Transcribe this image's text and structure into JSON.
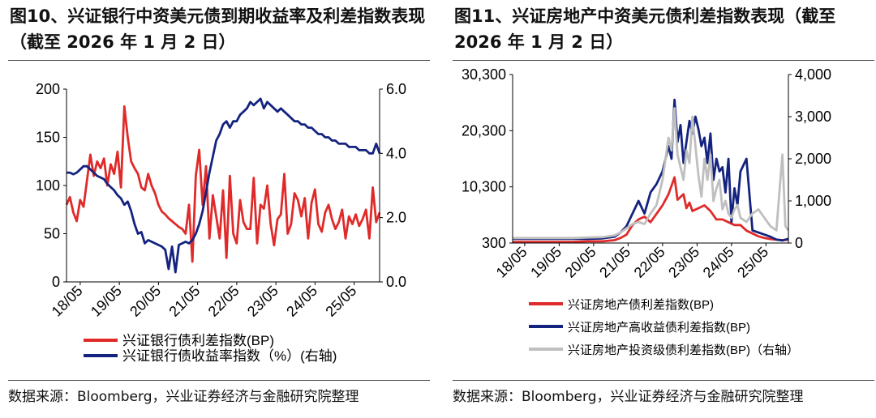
{
  "colors": {
    "red": "#e02a2a",
    "navy": "#14237f",
    "gray": "#bfbfbf",
    "axis": "#000000"
  },
  "left": {
    "title": "图10、兴证银行中资美元债到期收益率及利差指数表现（截至 2026 年 1 月 2 日）",
    "source": "数据来源：Bloomberg，兴业证券经济与金融研究院整理",
    "chart_data": {
      "type": "line",
      "x_ticks": [
        "18/05",
        "19/05",
        "20/05",
        "21/05",
        "22/05",
        "23/05",
        "24/05",
        "25/05"
      ],
      "x_range": [
        0,
        92
      ],
      "left_axis": {
        "ylim": [
          0,
          200
        ],
        "ticks": [
          "0",
          "50",
          "100",
          "150",
          "200"
        ],
        "tick_values": [
          0,
          50,
          100,
          150,
          200
        ]
      },
      "right_axis": {
        "ylim": [
          0,
          6
        ],
        "ticks": [
          "0.0",
          "2.0",
          "4.0",
          "6.0"
        ],
        "tick_values": [
          0,
          2,
          4,
          6
        ]
      },
      "series": [
        {
          "name": "兴证银行债利差指数(BP)",
          "axis": "left",
          "color": "red",
          "x": [
            0,
            1,
            2,
            3,
            4,
            5,
            6,
            7,
            8,
            9,
            10,
            11,
            12,
            13,
            14,
            15,
            16,
            17,
            18,
            19,
            20,
            21,
            22,
            23,
            24,
            25,
            26,
            27,
            28,
            29,
            30,
            31,
            32,
            33,
            34,
            35,
            36,
            37,
            38,
            39,
            40,
            41,
            42,
            43,
            44,
            45,
            46,
            47,
            48,
            49,
            50,
            51,
            52,
            53,
            54,
            55,
            56,
            57,
            58,
            59,
            60,
            61,
            62,
            63,
            64,
            65,
            66,
            67,
            68,
            69,
            70,
            71,
            72,
            73,
            74,
            75,
            76,
            77,
            78,
            79,
            80,
            81,
            82,
            83,
            84,
            85,
            86,
            87,
            88,
            89,
            90,
            91,
            92
          ],
          "values": [
            80,
            88,
            72,
            63,
            85,
            78,
            105,
            132,
            110,
            125,
            118,
            128,
            100,
            122,
            112,
            135,
            98,
            182,
            150,
            125,
            118,
            112,
            98,
            95,
            112,
            100,
            92,
            80,
            73,
            70,
            66,
            63,
            60,
            57,
            55,
            50,
            80,
            21,
            110,
            137,
            80,
            120,
            45,
            90,
            68,
            45,
            95,
            25,
            110,
            50,
            40,
            85,
            62,
            55,
            55,
            108,
            40,
            80,
            76,
            100,
            60,
            38,
            65,
            70,
            112,
            50,
            60,
            92,
            85,
            68,
            87,
            45,
            82,
            96,
            60,
            52,
            72,
            80,
            65,
            55,
            62,
            75,
            45,
            68,
            60,
            70,
            58,
            65,
            75,
            45,
            98,
            62,
            72
          ]
        },
        {
          "name": "兴证银行债收益率指数（%）(右轴)",
          "axis": "right",
          "color": "navy",
          "x": [
            0,
            1,
            2,
            3,
            4,
            5,
            6,
            7,
            8,
            9,
            10,
            11,
            12,
            13,
            14,
            15,
            16,
            17,
            18,
            19,
            20,
            21,
            22,
            23,
            24,
            25,
            26,
            27,
            28,
            29,
            30,
            31,
            32,
            33,
            34,
            35,
            36,
            37,
            38,
            39,
            40,
            41,
            42,
            43,
            44,
            45,
            46,
            47,
            48,
            49,
            50,
            51,
            52,
            53,
            54,
            55,
            56,
            57,
            58,
            59,
            60,
            61,
            62,
            63,
            64,
            65,
            66,
            67,
            68,
            69,
            70,
            71,
            72,
            73,
            74,
            75,
            76,
            77,
            78,
            79,
            80,
            81,
            82,
            83,
            84,
            85,
            86,
            87,
            88,
            89,
            90,
            91,
            92
          ],
          "values": [
            3.4,
            3.4,
            3.35,
            3.4,
            3.5,
            3.6,
            3.6,
            3.5,
            3.4,
            3.3,
            3.25,
            3.2,
            3.05,
            2.95,
            2.85,
            2.7,
            2.6,
            2.4,
            2.5,
            2.2,
            1.8,
            1.5,
            1.55,
            1.2,
            1.3,
            1.25,
            1.2,
            1.15,
            1.1,
            1.0,
            0.4,
            1.1,
            0.3,
            1.15,
            1.2,
            1.25,
            1.2,
            1.3,
            1.5,
            1.8,
            2.2,
            2.8,
            3.4,
            3.9,
            4.4,
            4.6,
            4.9,
            5.0,
            4.8,
            5.0,
            5.0,
            5.2,
            5.3,
            5.4,
            5.6,
            5.5,
            5.6,
            5.7,
            5.4,
            5.6,
            5.5,
            5.4,
            5.3,
            5.4,
            5.3,
            5.2,
            5.1,
            5.0,
            5.0,
            4.9,
            4.9,
            4.8,
            4.8,
            4.7,
            4.6,
            4.6,
            4.5,
            4.5,
            4.4,
            4.4,
            4.3,
            4.3,
            4.3,
            4.2,
            4.2,
            4.2,
            4.1,
            4.1,
            4.1,
            4.0,
            4.0,
            4.3,
            4.0
          ]
        }
      ]
    }
  },
  "right": {
    "title": "图11、兴证房地产中资美元债利差指数表现（截至 2026 年 1 月 2 日）",
    "source": "数据来源：Bloomberg，兴业证券经济与金融研究院整理",
    "chart_data": {
      "type": "line",
      "x_ticks": [
        "18/05",
        "19/05",
        "20/05",
        "21/05",
        "22/05",
        "23/05",
        "24/05",
        "25/05"
      ],
      "x_range": [
        0,
        92
      ],
      "left_axis": {
        "ylim": [
          300,
          30300
        ],
        "ticks": [
          "300",
          "10,300",
          "20,300",
          "30,300"
        ],
        "tick_values": [
          300,
          10300,
          20300,
          30300
        ]
      },
      "right_axis": {
        "ylim": [
          0,
          4000
        ],
        "ticks": [
          "0",
          "1,000",
          "2,000",
          "3,000",
          "4,000"
        ],
        "tick_values": [
          0,
          1000,
          2000,
          3000,
          4000
        ]
      },
      "series": [
        {
          "name": "兴证房地产债利差指数(BP)",
          "axis": "left",
          "color": "red",
          "x": [
            0,
            10,
            20,
            25,
            30,
            34,
            36,
            38,
            40,
            42,
            44,
            46,
            48,
            50,
            52,
            54,
            55,
            57,
            58,
            59,
            60,
            62,
            64,
            66,
            68,
            70,
            72,
            74,
            76,
            78,
            80,
            82,
            84,
            86,
            88,
            90,
            92
          ],
          "values": [
            500,
            500,
            500,
            600,
            600,
            800,
            1200,
            1800,
            3500,
            4500,
            5000,
            4000,
            5500,
            7000,
            9000,
            12000,
            8000,
            9000,
            6500,
            7500,
            6000,
            6500,
            7000,
            6000,
            4500,
            4500,
            4000,
            3500,
            3500,
            2500,
            2000,
            1500,
            1200,
            1000,
            900,
            800,
            900
          ]
        },
        {
          "name": "兴证房地产高收益债利差指数(BP)",
          "axis": "right",
          "color": "navy",
          "x": [
            0,
            10,
            20,
            25,
            30,
            34,
            36,
            38,
            40,
            42,
            44,
            46,
            48,
            50,
            52,
            53,
            54,
            55,
            56,
            57,
            58,
            59,
            60,
            61,
            62,
            63,
            64,
            65,
            66,
            67,
            68,
            69,
            70,
            71,
            72,
            73,
            74,
            75,
            76,
            78,
            80,
            82,
            84,
            86,
            88,
            90,
            92
          ],
          "values": [
            100,
            100,
            100,
            100,
            110,
            150,
            250,
            400,
            700,
            1000,
            700,
            1200,
            1400,
            1700,
            2300,
            2000,
            3400,
            2400,
            2800,
            1900,
            2400,
            2900,
            2600,
            3000,
            2700,
            2300,
            2500,
            1900,
            2600,
            1500,
            2000,
            1700,
            1800,
            1200,
            2000,
            500,
            1300,
            900,
            1700,
            2000,
            300,
            250,
            200,
            150,
            80,
            60,
            100
          ]
        },
        {
          "name": "兴证房地产投资级债利差指数(BP)（右轴）",
          "axis": "right",
          "color": "gray",
          "x": [
            0,
            10,
            20,
            25,
            30,
            34,
            36,
            38,
            40,
            42,
            44,
            46,
            48,
            50,
            52,
            53,
            54,
            55,
            56,
            57,
            58,
            59,
            60,
            61,
            62,
            63,
            64,
            65,
            66,
            67,
            68,
            69,
            70,
            71,
            72,
            73,
            74,
            75,
            76,
            78,
            80,
            82,
            84,
            86,
            88,
            89,
            90,
            91,
            92
          ],
          "values": [
            120,
            120,
            120,
            130,
            140,
            180,
            250,
            350,
            450,
            500,
            450,
            700,
            900,
            1500,
            2500,
            2200,
            3200,
            2100,
            1800,
            1500,
            2200,
            1900,
            3000,
            2300,
            1600,
            1100,
            2000,
            1500,
            2100,
            1000,
            1300,
            1500,
            800,
            1000,
            700,
            600,
            800,
            900,
            600,
            500,
            700,
            800,
            600,
            400,
            300,
            1200,
            2100,
            400,
            300
          ]
        }
      ]
    }
  }
}
